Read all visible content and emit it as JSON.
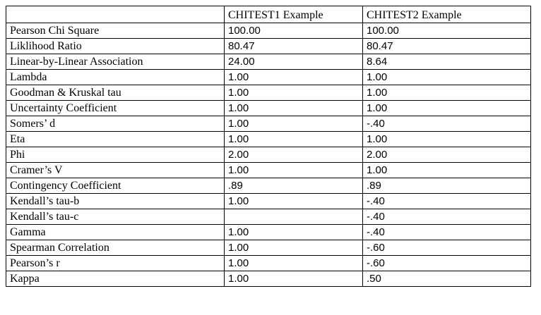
{
  "table": {
    "headers": [
      "",
      "CHITEST1 Example",
      "CHITEST2 Example"
    ],
    "rows": [
      {
        "label": "Pearson Chi Square",
        "chitest1": "100.00",
        "chitest2": "100.00"
      },
      {
        "label": "Liklihood Ratio",
        "chitest1": "80.47",
        "chitest2": "80.47"
      },
      {
        "label": "Linear-by-Linear Association",
        "chitest1": "24.00",
        "chitest2": "8.64"
      },
      {
        "label": "Lambda",
        "chitest1": "1.00",
        "chitest2": "1.00"
      },
      {
        "label": "Goodman & Kruskal tau",
        "chitest1": "1.00",
        "chitest2": "1.00"
      },
      {
        "label": "Uncertainty Coefficient",
        "chitest1": "1.00",
        "chitest2": "1.00"
      },
      {
        "label": "Somers’ d",
        "chitest1": "1.00",
        "chitest2": "-.40"
      },
      {
        "label": "Eta",
        "chitest1": "1.00",
        "chitest2": "1.00"
      },
      {
        "label": "Phi",
        "chitest1": "2.00",
        "chitest2": "2.00"
      },
      {
        "label": "Cramer’s V",
        "chitest1": "1.00",
        "chitest2": "1.00"
      },
      {
        "label": "Contingency Coefficient",
        "chitest1": ".89",
        "chitest2": ".89"
      },
      {
        "label": "Kendall’s tau-b",
        "chitest1": "1.00",
        "chitest2": "-.40"
      },
      {
        "label": "Kendall’s tau-c",
        "chitest1": "",
        "chitest2": "-.40"
      },
      {
        "label": "Gamma",
        "chitest1": "1.00",
        "chitest2": "-.40"
      },
      {
        "label": "Spearman Correlation",
        "chitest1": "1.00",
        "chitest2": "-.60"
      },
      {
        "label": "Pearson’s r",
        "chitest1": "1.00",
        "chitest2": "-.60"
      },
      {
        "label": "Kappa",
        "chitest1": "1.00",
        "chitest2": ".50"
      }
    ]
  }
}
